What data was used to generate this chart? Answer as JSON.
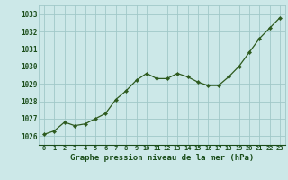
{
  "x": [
    0,
    1,
    2,
    3,
    4,
    5,
    6,
    7,
    8,
    9,
    10,
    11,
    12,
    13,
    14,
    15,
    16,
    17,
    18,
    19,
    20,
    21,
    22,
    23
  ],
  "y": [
    1026.1,
    1026.3,
    1026.8,
    1026.6,
    1026.7,
    1027.0,
    1027.3,
    1028.1,
    1028.6,
    1029.2,
    1029.6,
    1029.3,
    1029.3,
    1029.6,
    1029.4,
    1029.1,
    1028.9,
    1028.9,
    1029.4,
    1030.0,
    1030.8,
    1031.6,
    1032.2,
    1032.8
  ],
  "line_color": "#2d5a1e",
  "marker": "D",
  "marker_size": 2.2,
  "bg_color": "#cce8e8",
  "grid_color": "#a0c8c8",
  "xlabel": "Graphe pression niveau de la mer (hPa)",
  "xlabel_color": "#1a4d1a",
  "tick_color": "#1a4d1a",
  "yticks": [
    1026,
    1027,
    1028,
    1029,
    1030,
    1031,
    1032,
    1033
  ],
  "xticks": [
    0,
    1,
    2,
    3,
    4,
    5,
    6,
    7,
    8,
    9,
    10,
    11,
    12,
    13,
    14,
    15,
    16,
    17,
    18,
    19,
    20,
    21,
    22,
    23
  ],
  "ylim": [
    1025.5,
    1033.5
  ],
  "xlim": [
    -0.5,
    23.5
  ]
}
